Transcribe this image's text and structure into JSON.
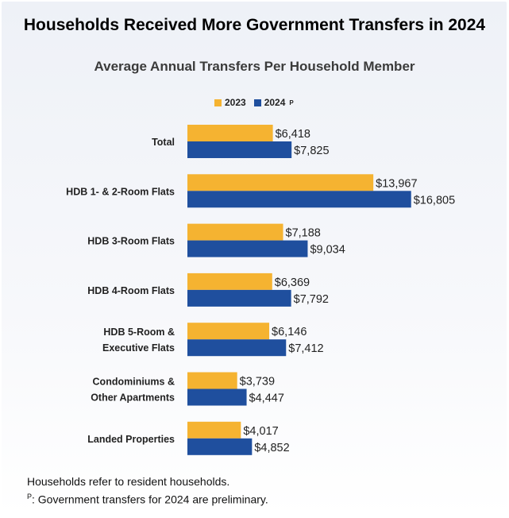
{
  "title": "Households Received More Government Transfers in 2024",
  "subtitle": "Average Annual Transfers Per Household Member",
  "colors": {
    "s2023": "#f5b331",
    "s2024": "#1f4f9e",
    "label": "#222222",
    "value": "#222222"
  },
  "chart_data": {
    "type": "bar",
    "orientation": "horizontal",
    "title": "Households Received More Government Transfers in 2024",
    "subtitle": "Average Annual Transfers Per Household Member",
    "categories": [
      "Total",
      "HDB 1- & 2-Room Flats",
      "HDB 3-Room Flats",
      "HDB 4-Room Flats",
      "HDB 5-Room &\nExecutive Flats",
      "Condominiums &\nOther Apartments",
      "Landed Properties"
    ],
    "series": [
      {
        "name": "2023",
        "legend_suffix": "",
        "values": [
          6418,
          13967,
          7188,
          6369,
          6146,
          3739,
          4017
        ]
      },
      {
        "name": "2024",
        "legend_suffix": "P",
        "values": [
          7825,
          16805,
          9034,
          7792,
          7412,
          4447,
          4852
        ]
      }
    ],
    "value_labels": [
      [
        "$6,418",
        "$13,967",
        "$7,188",
        "$6,369",
        "$6,146",
        "$3,739",
        "$4,017"
      ],
      [
        "$7,825",
        "$16,805",
        "$9,034",
        "$7,792",
        "$7,412",
        "$4,447",
        "$4,852"
      ]
    ],
    "xlim": [
      0,
      17000
    ],
    "grid": false,
    "legend_position": "top"
  },
  "footnotes": {
    "note1": "Households refer to resident households.",
    "note2_sup": "P",
    "note2_text": ": Government transfers for 2024 are preliminary."
  }
}
